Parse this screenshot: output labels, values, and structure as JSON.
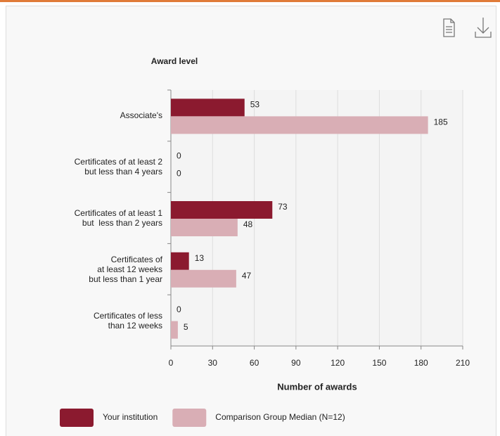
{
  "chart_data": {
    "type": "bar",
    "orientation": "horizontal",
    "yaxis_title": "Award level",
    "xaxis_title": "Number of awards",
    "categories": [
      "Associate's",
      "Certificates of at least 2\nbut less than 4 years",
      "Certificates of at least 1\nbut  less than 2 years",
      "Certificates of\nat least 12 weeks\nbut less than 1 year",
      "Certificates of less\nthan 12 weeks"
    ],
    "series": [
      {
        "name": "Your institution",
        "color": "#8b1a2f",
        "values": [
          53,
          0,
          73,
          13,
          0
        ]
      },
      {
        "name": "Comparison Group Median (N=12)",
        "color": "#d9aeb5",
        "values": [
          185,
          0,
          48,
          47,
          5
        ]
      }
    ],
    "xlim": [
      0,
      210
    ],
    "xticks": [
      0,
      30,
      60,
      90,
      120,
      150,
      180,
      210
    ],
    "grid": true,
    "legend": "bottom"
  }
}
